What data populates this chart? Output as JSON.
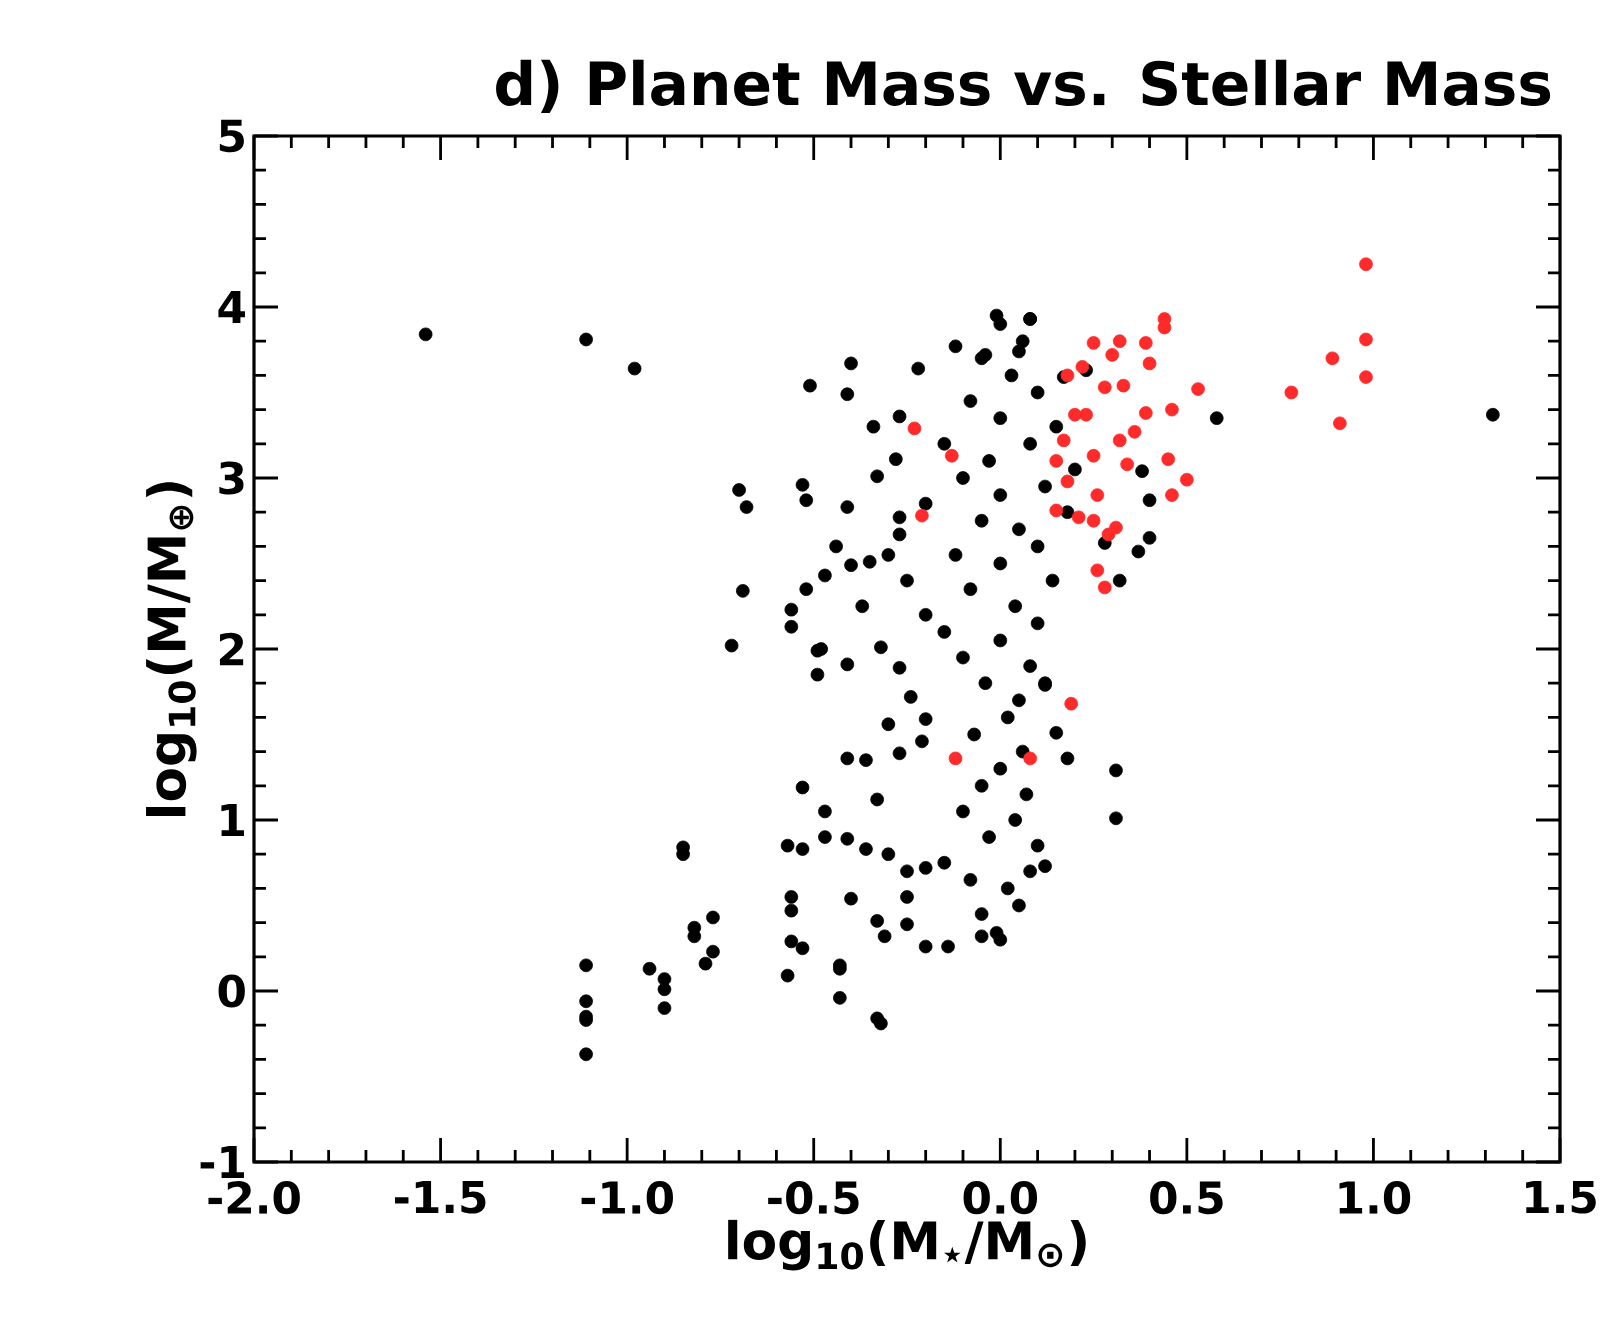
{
  "chart_data": {
    "type": "scatter",
    "title": "d) Planet Mass vs. Stellar Mass",
    "xlabel": "log$_{10}$(M$_{⋆}$/M$_{⊙}$)",
    "ylabel": "log$_{10}$(M/M$_{⊕}$)",
    "xlim": [
      -2.0,
      1.5
    ],
    "ylim": [
      -1,
      5
    ],
    "xticks": [
      {
        "value": -2.0,
        "label": "-2.0"
      },
      {
        "value": -1.5,
        "label": "-1.5"
      },
      {
        "value": -1.0,
        "label": "-1.0"
      },
      {
        "value": -0.5,
        "label": "-0.5"
      },
      {
        "value": 0.0,
        "label": "0.0"
      },
      {
        "value": 0.5,
        "label": "0.5"
      },
      {
        "value": 1.0,
        "label": "1.0"
      },
      {
        "value": 1.5,
        "label": "1.5"
      }
    ],
    "yticks": [
      -1,
      0,
      1,
      2,
      3,
      4,
      5
    ],
    "grid": false,
    "marker": "circle",
    "series": [
      {
        "color": "#000000",
        "x": [
          -1.54,
          -1.11,
          -0.98,
          -1.11,
          -1.11,
          -1.11,
          -1.11,
          -1.11,
          -0.94,
          -0.9,
          -0.9,
          -0.9,
          -0.85,
          -0.85,
          -0.82,
          -0.82,
          -0.77,
          -0.77,
          -0.79,
          1.32,
          0.58,
          0.4,
          0.37,
          0.4,
          0.38,
          0.32,
          0.28,
          0.12,
          0.15,
          0.18,
          0.31,
          0.08,
          0.31,
          0.12,
          0.12,
          -0.53,
          -0.47,
          -0.47,
          -0.57,
          -0.53,
          -0.56,
          -0.56,
          -0.56,
          -0.53,
          -0.57,
          -0.43,
          -0.43,
          -0.43,
          -0.33,
          -0.32,
          -0.4,
          -0.33,
          -0.31,
          -0.25,
          -0.2,
          -0.14,
          -0.05,
          -0.01,
          -0.25,
          -0.41,
          -0.36,
          -0.33,
          -0.41,
          -0.36,
          -0.3,
          -0.27,
          -0.21,
          -0.2,
          -0.49,
          -0.49,
          -0.41,
          -0.24,
          -0.27,
          -0.3,
          -0.25,
          0.0,
          -0.05,
          0.05,
          0.02,
          -0.08,
          0.08,
          -0.15,
          -0.2,
          0.1,
          -0.03,
          0.04,
          -0.1,
          0.07,
          -0.05,
          0.0,
          0.06,
          -0.07,
          0.02,
          0.05,
          -0.04,
          0.08,
          -0.1,
          0.0,
          -0.15,
          0.1,
          -0.2,
          0.04,
          -0.08,
          0.14,
          -0.25,
          0.0,
          -0.12,
          0.1,
          -0.3,
          0.05,
          -0.05,
          0.18,
          -0.2,
          0.0,
          0.12,
          -0.1,
          0.2,
          -0.03,
          0.08,
          -0.15,
          0.15,
          0.0,
          -0.08,
          0.1,
          0.03,
          -0.05,
          0.06,
          0.0,
          -0.51,
          -0.4,
          -0.41,
          -0.22,
          -0.34,
          -0.27,
          -0.53,
          -0.52,
          -0.41,
          -0.33,
          -0.28,
          -0.44,
          -0.47,
          -0.52,
          -0.56,
          -0.56,
          -0.48,
          -0.37,
          -0.4,
          -0.35,
          -0.27,
          -0.27,
          -0.32,
          -0.01,
          0.08,
          -0.12,
          -0.04,
          0.05,
          0.17,
          0.23,
          -0.7,
          -0.68,
          -0.69,
          -0.72
        ],
        "values": [
          3.84,
          3.81,
          3.64,
          0.15,
          -0.06,
          -0.15,
          -0.17,
          -0.37,
          0.13,
          0.07,
          0.01,
          -0.1,
          0.84,
          0.8,
          0.37,
          0.32,
          0.43,
          0.23,
          0.16,
          3.37,
          3.35,
          2.87,
          2.57,
          2.65,
          3.04,
          2.4,
          2.62,
          1.8,
          1.51,
          1.36,
          1.29,
          3.93,
          1.01,
          1.79,
          0.73,
          1.19,
          1.05,
          0.9,
          0.85,
          0.83,
          0.55,
          0.47,
          0.29,
          0.25,
          0.09,
          0.15,
          0.13,
          -0.04,
          -0.16,
          -0.19,
          0.54,
          0.41,
          0.32,
          0.39,
          0.26,
          0.26,
          0.32,
          0.34,
          0.55,
          1.36,
          1.35,
          1.12,
          0.89,
          0.83,
          1.56,
          1.39,
          1.46,
          1.59,
          1.99,
          1.85,
          1.91,
          1.72,
          1.89,
          0.8,
          0.7,
          0.3,
          0.45,
          0.5,
          0.6,
          0.65,
          0.7,
          0.75,
          0.72,
          0.85,
          0.9,
          1.0,
          1.05,
          1.15,
          1.2,
          1.3,
          1.4,
          1.5,
          1.6,
          1.7,
          1.8,
          1.9,
          1.95,
          2.05,
          2.1,
          2.15,
          2.2,
          2.25,
          2.35,
          2.4,
          2.4,
          2.5,
          2.55,
          2.6,
          2.55,
          2.7,
          2.75,
          2.8,
          2.85,
          2.9,
          2.95,
          3.0,
          3.05,
          3.1,
          3.2,
          3.2,
          3.3,
          3.35,
          3.45,
          3.5,
          3.6,
          3.7,
          3.8,
          3.9,
          3.54,
          3.67,
          3.49,
          3.64,
          3.3,
          3.36,
          2.96,
          2.87,
          2.83,
          3.01,
          3.11,
          2.6,
          2.43,
          2.35,
          2.23,
          2.13,
          2.0,
          2.25,
          2.49,
          2.51,
          2.77,
          2.67,
          2.01,
          3.95,
          3.93,
          3.77,
          3.72,
          3.74,
          3.59,
          3.63,
          2.93,
          2.83,
          2.34,
          2.02
        ]
      },
      {
        "color": "#ff2a2a",
        "x": [
          0.98,
          0.98,
          0.98,
          0.89,
          0.78,
          0.91,
          0.53,
          0.44,
          0.44,
          0.39,
          0.4,
          0.46,
          0.5,
          0.46,
          0.45,
          0.39,
          0.32,
          0.25,
          0.3,
          0.33,
          0.28,
          0.36,
          0.34,
          0.25,
          0.31,
          0.28,
          0.26,
          0.19,
          0.08,
          0.23,
          0.18,
          0.22,
          0.26,
          0.21,
          -0.12,
          -0.23,
          -0.21,
          -0.13,
          0.32,
          0.2,
          0.17,
          0.18,
          0.15,
          0.25,
          0.29,
          0.15
        ],
        "values": [
          4.25,
          3.81,
          3.59,
          3.7,
          3.5,
          3.32,
          3.52,
          3.93,
          3.88,
          3.79,
          3.67,
          3.4,
          2.99,
          2.9,
          3.11,
          3.38,
          3.8,
          3.79,
          3.72,
          3.54,
          3.53,
          3.27,
          3.08,
          3.13,
          2.71,
          2.36,
          2.46,
          1.68,
          1.36,
          3.37,
          3.6,
          3.65,
          2.9,
          2.77,
          1.36,
          3.29,
          2.78,
          3.13,
          3.22,
          3.37,
          3.22,
          2.98,
          2.81,
          2.75,
          2.67,
          3.1
        ]
      }
    ]
  }
}
